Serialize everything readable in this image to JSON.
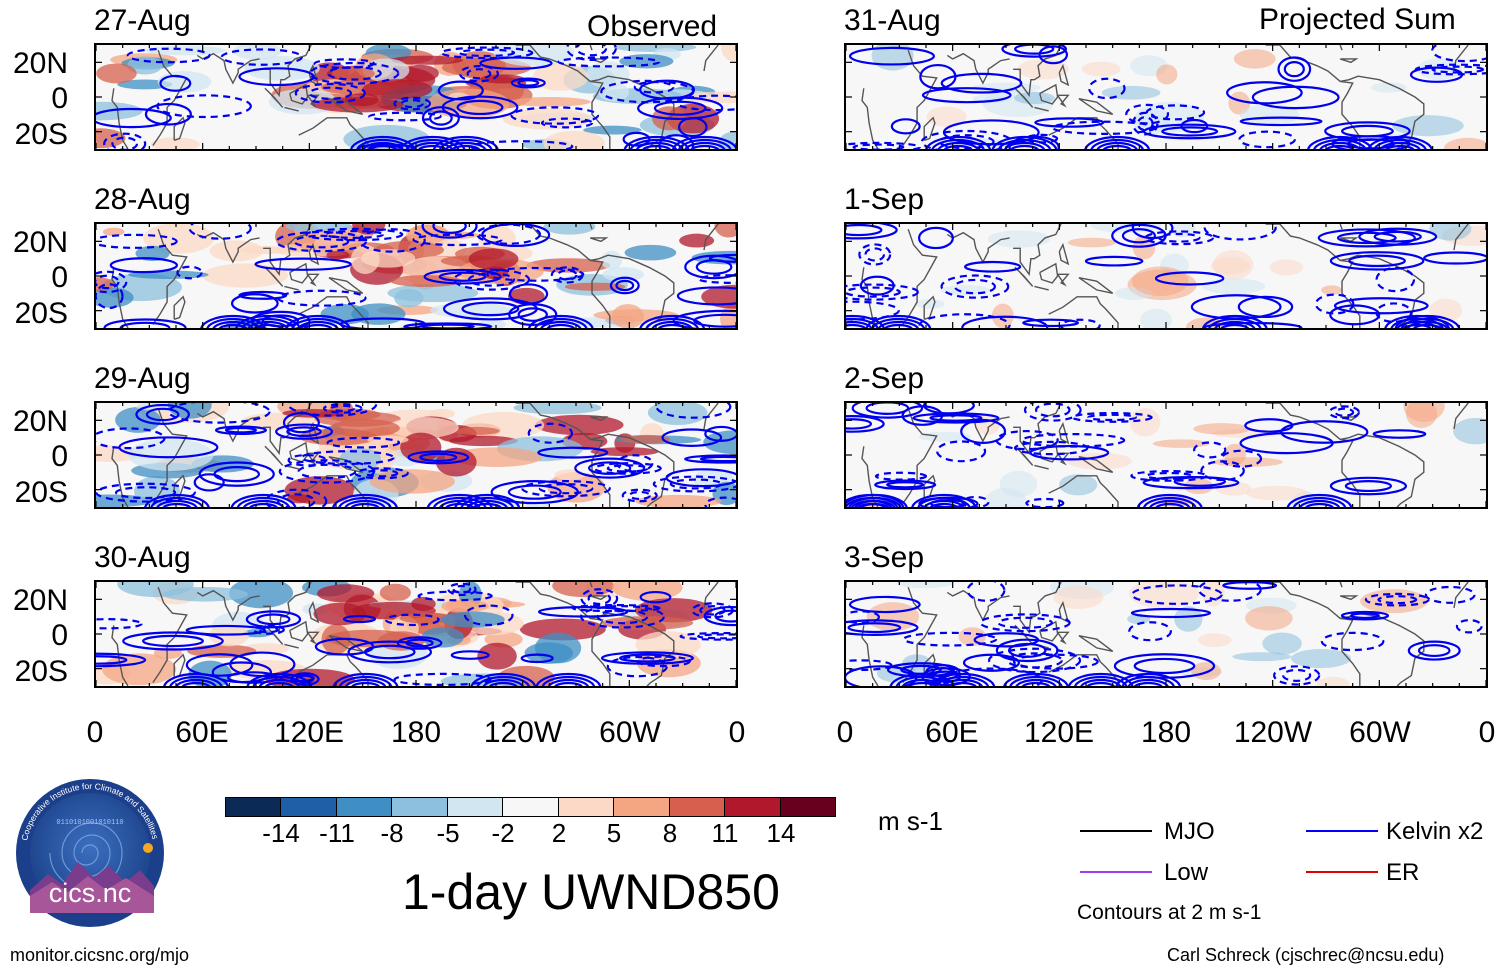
{
  "columns": [
    {
      "title": "Observed",
      "panels": [
        {
          "date": "27-Aug"
        },
        {
          "date": "28-Aug"
        },
        {
          "date": "29-Aug"
        },
        {
          "date": "30-Aug"
        }
      ]
    },
    {
      "title": "Projected Sum",
      "panels": [
        {
          "date": "31-Aug"
        },
        {
          "date": "1-Sep"
        },
        {
          "date": "2-Sep"
        },
        {
          "date": "3-Sep"
        }
      ]
    }
  ],
  "lat_labels": [
    "20N",
    "0",
    "20S"
  ],
  "lon_labels": [
    "0",
    "60E",
    "120E",
    "180",
    "120W",
    "60W",
    "0"
  ],
  "colorbar": {
    "colors": [
      "#0b2a55",
      "#1f5fa8",
      "#3f8fc4",
      "#8dc0de",
      "#d2e6f2",
      "#f7f7f7",
      "#fcd9c6",
      "#f4a582",
      "#d6604d",
      "#b2182b",
      "#67001f"
    ],
    "ticks": [
      "-14",
      "-11",
      "-8",
      "-5",
      "-2",
      "2",
      "5",
      "8",
      "11",
      "14"
    ],
    "units": "m s-1"
  },
  "product_title": "1-day UWND850",
  "legend": {
    "items": [
      {
        "label": "MJO",
        "color": "#000000"
      },
      {
        "label": "Kelvin x2",
        "color": "#0000ff"
      },
      {
        "label": "Low",
        "color": "#a03cf0"
      },
      {
        "label": "ER",
        "color": "#e00000"
      }
    ],
    "note": "Contours at 2 m s-1"
  },
  "logo": {
    "ring_text": "Cooperative Institute for Climate and Satellites",
    "name": "cics.nc",
    "binary_text": "0110101001010110"
  },
  "footer": {
    "left": "monitor.cicsnc.org/mjo",
    "right": "Carl Schreck (cjschrec@ncsu.edu)"
  }
}
